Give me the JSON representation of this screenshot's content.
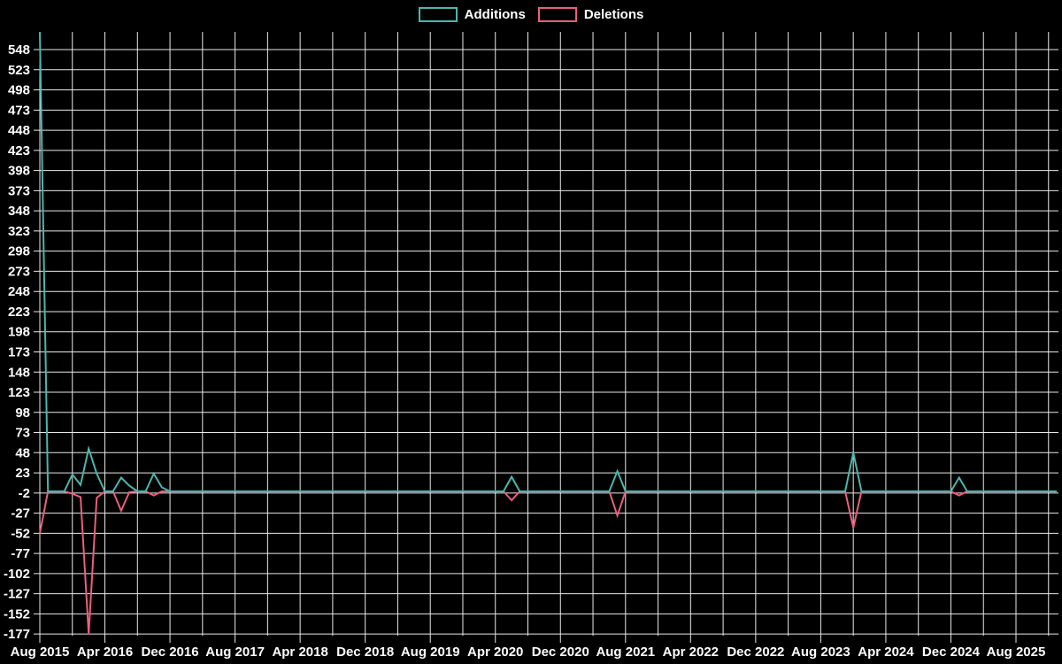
{
  "colors": {
    "background": "#000000",
    "grid": "#e9e9e9",
    "text": "#ffffff",
    "additions": "#4bb6ad",
    "deletions": "#ea5f7e"
  },
  "chart_data": {
    "type": "line",
    "title": "",
    "legend_position": "top-center",
    "grid": true,
    "x_axis": {
      "start_month": "2015-08",
      "total_months": 126,
      "label_interval_months": 8,
      "grid_interval_months": 4,
      "tick_labels": [
        "Aug 2015",
        "Apr 2016",
        "Dec 2016",
        "Aug 2017",
        "Apr 2018",
        "Dec 2018",
        "Aug 2019",
        "Apr 2020",
        "Dec 2020",
        "Aug 2021",
        "Apr 2022",
        "Dec 2022",
        "Aug 2023",
        "Apr 2024",
        "Dec 2024",
        "Aug 2025"
      ]
    },
    "y_axis": {
      "tick_labels": [
        548,
        523,
        498,
        473,
        448,
        423,
        398,
        373,
        348,
        323,
        298,
        273,
        248,
        223,
        198,
        173,
        148,
        123,
        98,
        73,
        48,
        23,
        -2,
        -27,
        -52,
        -77,
        -102,
        -127,
        -152,
        -177
      ],
      "ylim": [
        -179,
        570
      ]
    },
    "series": [
      {
        "name": "Additions",
        "color": "#4bb6ad",
        "baseline": 0,
        "points": [
          {
            "month": "2015-08",
            "value": 570
          },
          {
            "month": "2015-12",
            "value": 21
          },
          {
            "month": "2016-01",
            "value": 8
          },
          {
            "month": "2016-02",
            "value": 53
          },
          {
            "month": "2016-03",
            "value": 22
          },
          {
            "month": "2016-06",
            "value": 17
          },
          {
            "month": "2016-07",
            "value": 7
          },
          {
            "month": "2016-10",
            "value": 22
          },
          {
            "month": "2016-11",
            "value": 5
          },
          {
            "month": "2020-06",
            "value": 18
          },
          {
            "month": "2021-07",
            "value": 25
          },
          {
            "month": "2023-12",
            "value": 48
          },
          {
            "month": "2025-01",
            "value": 17
          }
        ]
      },
      {
        "name": "Deletions",
        "color": "#ea5f7e",
        "baseline": 0,
        "points": [
          {
            "month": "2015-08",
            "value": -52
          },
          {
            "month": "2015-12",
            "value": -3
          },
          {
            "month": "2016-01",
            "value": -7
          },
          {
            "month": "2016-02",
            "value": -177
          },
          {
            "month": "2016-03",
            "value": -8
          },
          {
            "month": "2016-06",
            "value": -24
          },
          {
            "month": "2016-07",
            "value": -1
          },
          {
            "month": "2016-10",
            "value": -5
          },
          {
            "month": "2020-06",
            "value": -11
          },
          {
            "month": "2021-07",
            "value": -30
          },
          {
            "month": "2023-12",
            "value": -45
          },
          {
            "month": "2025-01",
            "value": -5
          }
        ]
      }
    ]
  }
}
